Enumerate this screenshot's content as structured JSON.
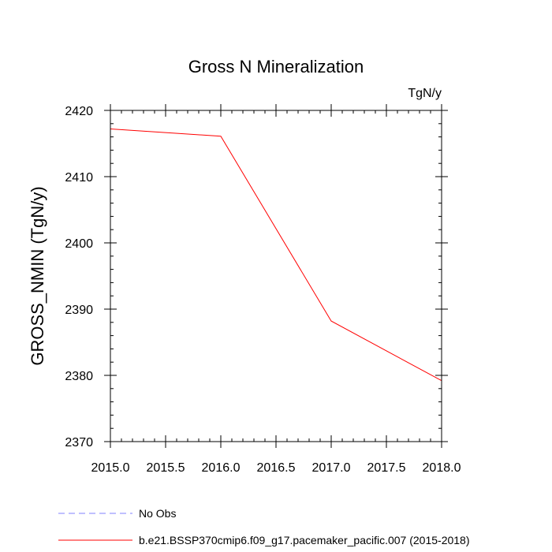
{
  "chart_data": {
    "type": "line",
    "title": "Gross N Mineralization",
    "units": "TgN/y",
    "xlabel": "",
    "ylabel": "GROSS_NMIN  (TgN/y)",
    "xlim": [
      2015.0,
      2018.0
    ],
    "ylim": [
      2370,
      2420
    ],
    "x_major_ticks": [
      2015.0,
      2015.5,
      2016.0,
      2016.5,
      2017.0,
      2017.5,
      2018.0
    ],
    "x_tick_labels": [
      "2015.0",
      "2015.5",
      "2016.0",
      "2016.5",
      "2017.0",
      "2017.5",
      "2018.0"
    ],
    "x_minor_step": 0.1,
    "y_major_ticks": [
      2370,
      2380,
      2390,
      2400,
      2410,
      2420
    ],
    "y_tick_labels": [
      "2370",
      "2380",
      "2390",
      "2400",
      "2410",
      "2420"
    ],
    "y_minor_step": 2,
    "grid": false,
    "series": [
      {
        "name": "No Obs",
        "color": "#8080ff",
        "dash": true,
        "x": [],
        "y": []
      },
      {
        "name": "b.e21.BSSP370cmip6.f09_g17.pacemaker_pacific.007 (2015-2018)",
        "color": "#ff0000",
        "dash": false,
        "x": [
          2015.0,
          2016.0,
          2017.0,
          2018.0
        ],
        "y": [
          2417.2,
          2416.1,
          2388.2,
          2379.2
        ]
      }
    ],
    "legend_position": "bottom-left"
  }
}
